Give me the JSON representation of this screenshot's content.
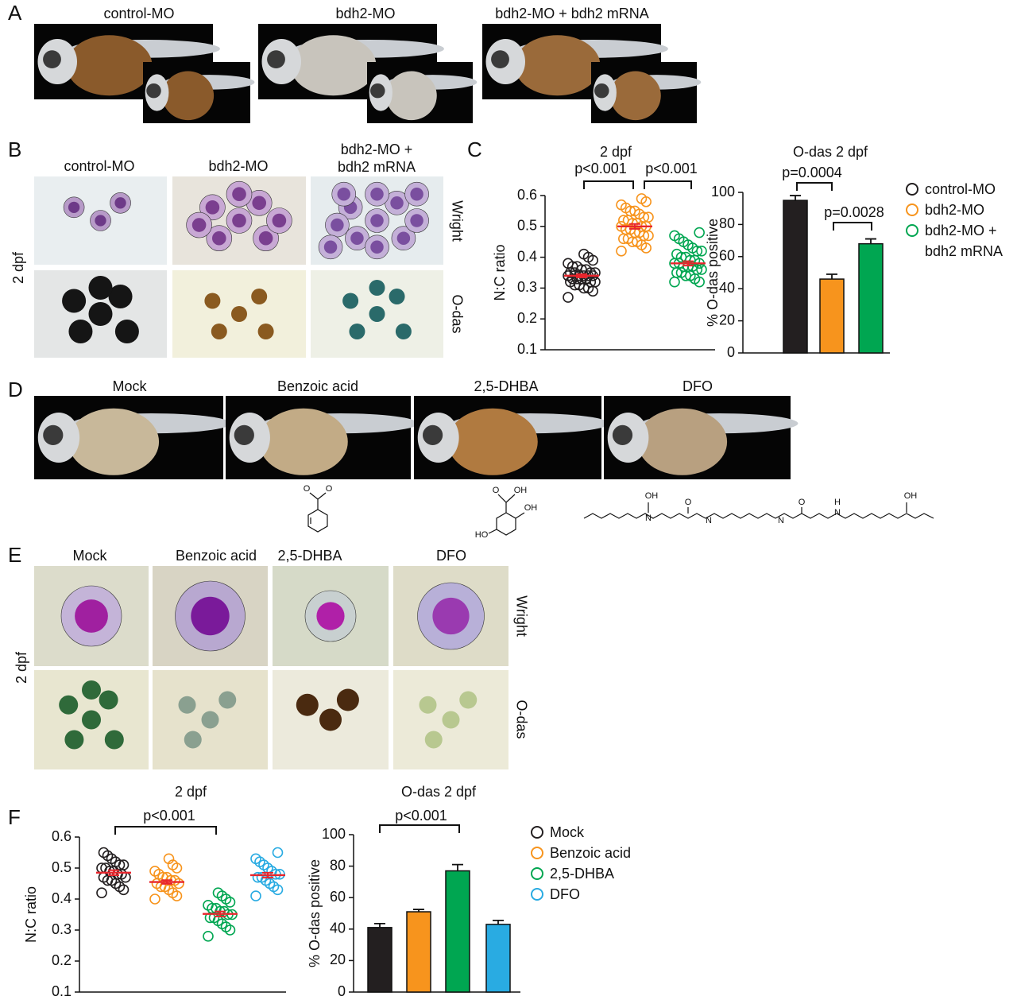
{
  "panel_a": {
    "letter": "A",
    "labels": [
      "control-MO",
      "bdh2-MO",
      "bdh2-MO + bdh2 mRNA"
    ]
  },
  "panel_b": {
    "letter": "B",
    "labels": [
      "control-MO",
      "bdh2-MO",
      "bdh2-MO +",
      "bdh2 mRNA"
    ],
    "rows": [
      "Wright",
      "O-das"
    ],
    "stage": "2 dpf"
  },
  "panel_c": {
    "letter": "C"
  },
  "panel_d": {
    "letter": "D",
    "labels": [
      "Mock",
      "Benzoic acid",
      "2,5-DHBA",
      "DFO"
    ]
  },
  "structures": {
    "benzoic": [
      "O",
      "O"
    ],
    "dhba": [
      "O",
      "OH",
      "OH",
      "HO"
    ],
    "dfo": [
      "OH",
      "N",
      "O",
      "N",
      "N",
      "O",
      "H",
      "N",
      "OH"
    ]
  },
  "panel_e": {
    "letter": "E",
    "labels": [
      "Mock",
      "Benzoic acid",
      "2,5-DHBA",
      "DFO"
    ],
    "rows": [
      "Wright",
      "O-das"
    ],
    "stage": "2 dpf"
  },
  "panel_f": {
    "letter": "F"
  },
  "chart_data": [
    {
      "type": "strip",
      "title": "2 dpf",
      "ylabel": "N:C ratio",
      "ylim": [
        0.1,
        0.6
      ],
      "yticks": [
        0.1,
        0.2,
        0.3,
        0.4,
        0.5,
        0.6
      ],
      "mean_color": "#e8262d",
      "legend": "right",
      "annotations": [
        "p<0.001",
        "p<0.001"
      ],
      "series": [
        {
          "name": "control-MO",
          "color": "#231f20",
          "mean": 0.34,
          "sem": 0.005,
          "values": [
            0.27,
            0.29,
            0.3,
            0.3,
            0.31,
            0.31,
            0.32,
            0.32,
            0.32,
            0.33,
            0.33,
            0.33,
            0.33,
            0.34,
            0.34,
            0.34,
            0.34,
            0.34,
            0.35,
            0.35,
            0.35,
            0.35,
            0.36,
            0.36,
            0.37,
            0.37,
            0.38,
            0.39,
            0.4,
            0.41
          ]
        },
        {
          "name": "bdh2-MO",
          "color": "#f7941d",
          "mean": 0.5,
          "sem": 0.008,
          "values": [
            0.42,
            0.43,
            0.44,
            0.45,
            0.45,
            0.46,
            0.46,
            0.47,
            0.47,
            0.48,
            0.48,
            0.49,
            0.49,
            0.5,
            0.5,
            0.5,
            0.51,
            0.51,
            0.52,
            0.52,
            0.53,
            0.53,
            0.54,
            0.55,
            0.55,
            0.56,
            0.57,
            0.58,
            0.59
          ]
        },
        {
          "name": "bdh2-MO + bdh2 mRNA",
          "color": "#00a651",
          "mean": 0.38,
          "sem": 0.007,
          "values": [
            0.32,
            0.32,
            0.33,
            0.34,
            0.34,
            0.35,
            0.35,
            0.36,
            0.36,
            0.37,
            0.37,
            0.37,
            0.38,
            0.38,
            0.38,
            0.39,
            0.39,
            0.4,
            0.4,
            0.41,
            0.42,
            0.42,
            0.43,
            0.44,
            0.45,
            0.46,
            0.47,
            0.48
          ]
        }
      ]
    },
    {
      "type": "bar",
      "title": "O-das 2 dpf",
      "ylabel": "% O-das positive",
      "ylim": [
        0,
        100
      ],
      "yticks": [
        0,
        20,
        40,
        60,
        80,
        100
      ],
      "values": [
        95,
        46,
        68
      ],
      "errors": [
        3,
        3,
        3
      ],
      "colors": [
        "#231f20",
        "#f7941d",
        "#00a651"
      ],
      "annotations": [
        "p=0.0004",
        "p=0.0028"
      ]
    },
    {
      "type": "strip",
      "title": "2 dpf",
      "ylabel": "N:C ratio",
      "ylim": [
        0.1,
        0.6
      ],
      "yticks": [
        0.1,
        0.2,
        0.3,
        0.4,
        0.5,
        0.6
      ],
      "mean_color": "#e8262d",
      "legend": "right",
      "annotations": [
        "p<0.001"
      ],
      "series": [
        {
          "name": "Mock",
          "color": "#231f20",
          "mean": 0.485,
          "sem": 0.008,
          "values": [
            0.42,
            0.43,
            0.44,
            0.45,
            0.46,
            0.46,
            0.47,
            0.47,
            0.48,
            0.48,
            0.49,
            0.49,
            0.5,
            0.5,
            0.51,
            0.51,
            0.52,
            0.53,
            0.54,
            0.55
          ]
        },
        {
          "name": "Benzoic acid",
          "color": "#f7941d",
          "mean": 0.455,
          "sem": 0.006,
          "values": [
            0.4,
            0.41,
            0.42,
            0.43,
            0.44,
            0.44,
            0.45,
            0.45,
            0.46,
            0.46,
            0.47,
            0.47,
            0.48,
            0.49,
            0.5,
            0.51,
            0.53
          ]
        },
        {
          "name": "2,5-DHBA",
          "color": "#00a651",
          "mean": 0.352,
          "sem": 0.008,
          "values": [
            0.28,
            0.3,
            0.31,
            0.32,
            0.33,
            0.34,
            0.34,
            0.35,
            0.35,
            0.36,
            0.36,
            0.37,
            0.37,
            0.38,
            0.39,
            0.4,
            0.41,
            0.42
          ]
        },
        {
          "name": "DFO",
          "color": "#29abe2",
          "mean": 0.477,
          "sem": 0.008,
          "values": [
            0.41,
            0.43,
            0.44,
            0.45,
            0.46,
            0.47,
            0.47,
            0.48,
            0.48,
            0.49,
            0.5,
            0.51,
            0.52,
            0.53,
            0.55
          ]
        }
      ]
    },
    {
      "type": "bar",
      "title": "O-das 2 dpf",
      "ylabel": "% O-das positive",
      "ylim": [
        0,
        100
      ],
      "yticks": [
        0,
        20,
        40,
        60,
        80,
        100
      ],
      "values": [
        41,
        51,
        77,
        43
      ],
      "errors": [
        2.5,
        1.5,
        4,
        2.5
      ],
      "colors": [
        "#231f20",
        "#f7941d",
        "#00a651",
        "#29abe2"
      ],
      "annotations": [
        "p<0.001"
      ]
    }
  ]
}
